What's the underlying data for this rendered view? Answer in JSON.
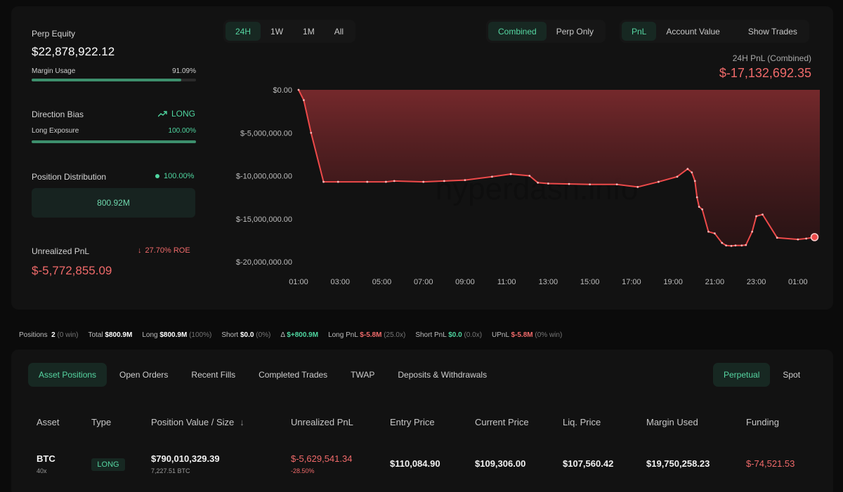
{
  "stats": {
    "perp_equity_label": "Perp Equity",
    "perp_equity_value": "$22,878,922.12",
    "margin_usage_label": "Margin Usage",
    "margin_usage_value": "91.09%",
    "margin_usage_fraction": 0.9109,
    "direction_bias_label": "Direction Bias",
    "direction_bias_value": "LONG",
    "long_exposure_label": "Long Exposure",
    "long_exposure_value": "100.00%",
    "long_exposure_fraction": 1.0,
    "position_distribution_label": "Position Distribution",
    "position_distribution_value": "100.00%",
    "position_distribution_amount": "800.92M",
    "unrealized_pnl_label": "Unrealized PnL",
    "roe_value": "27.70% ROE",
    "unrealized_pnl_value": "$-5,772,855.09"
  },
  "range_buttons": [
    "24H",
    "1W",
    "1M",
    "All"
  ],
  "range_active": 0,
  "mode_buttons": [
    "Combined",
    "Perp Only"
  ],
  "mode_active": 0,
  "metric_buttons": [
    "PnL",
    "Account Value"
  ],
  "metric_active": 0,
  "show_trades_label": "Show Trades",
  "chart_header": {
    "label": "24H PnL (Combined)",
    "value": "$-17,132,692.35"
  },
  "colors": {
    "accent_green": "#4fd6a0",
    "loss_red": "#f06a6a",
    "line_red": "#ee4a4a"
  },
  "chart_data": {
    "type": "area",
    "title": "",
    "xlabel": "",
    "ylabel": "",
    "x_ticks": [
      "01:00",
      "03:00",
      "05:00",
      "07:00",
      "09:00",
      "11:00",
      "13:00",
      "15:00",
      "17:00",
      "19:00",
      "21:00",
      "23:00",
      "01:00"
    ],
    "y_ticks": [
      "$0.00",
      "$-5,000,000.00",
      "$-10,000,000.00",
      "$-15,000,000.00",
      "$-20,000,000.00"
    ],
    "ylim": [
      -20000000,
      0
    ],
    "xlim_hours": [
      0,
      24.85
    ],
    "series": [
      {
        "x_hours": [
          0,
          0.25,
          0.6,
          1.2,
          1.9,
          3.3,
          4.2,
          4.6,
          6.0,
          7.0,
          8.0,
          9.3,
          10.2,
          11.1,
          11.5,
          12.0,
          13.0,
          14.0,
          15.3,
          16.3,
          17.3,
          18.2,
          18.7,
          18.9,
          19.05,
          19.15,
          19.25,
          19.4,
          19.7,
          20.0,
          20.35,
          20.55,
          20.8,
          21.0,
          21.3,
          21.5,
          21.8,
          22.0,
          22.3,
          23.0,
          24.0,
          24.4,
          24.8
        ],
        "values": [
          0,
          -1200000,
          -5000000,
          -10700000,
          -10700000,
          -10700000,
          -10700000,
          -10600000,
          -10700000,
          -10600000,
          -10500000,
          -10100000,
          -9800000,
          -10000000,
          -10800000,
          -10900000,
          -10950000,
          -11000000,
          -11000000,
          -11300000,
          -10700000,
          -10100000,
          -9200000,
          -9600000,
          -10600000,
          -12500000,
          -13600000,
          -13900000,
          -16500000,
          -16700000,
          -17800000,
          -18100000,
          -18150000,
          -18100000,
          -18100000,
          -18050000,
          -16500000,
          -14700000,
          -14500000,
          -17200000,
          -17400000,
          -17300000,
          -17132692
        ]
      }
    ],
    "watermark": "hyperdash.info",
    "grid": false
  },
  "summary": {
    "positions_label": "Positions",
    "positions_count": "2",
    "positions_win": "(0 win)",
    "total_label": "Total",
    "total_value": "$800.9M",
    "long_label": "Long",
    "long_value": "$800.9M",
    "long_pct": "(100%)",
    "short_label": "Short",
    "short_value": "$0.0",
    "short_pct": "(0%)",
    "delta_symbol": "Δ",
    "delta_value": "$+800.9M",
    "long_pnl_label": "Long PnL",
    "long_pnl_value": "$-5.8M",
    "long_pnl_x": "(25.0x)",
    "short_pnl_label": "Short PnL",
    "short_pnl_value": "$0.0",
    "short_pnl_x": "(0.0x)",
    "upnl_label": "UPnL",
    "upnl_value": "$-5.8M",
    "upnl_win": "(0% win)"
  },
  "tabs": [
    "Asset Positions",
    "Open Orders",
    "Recent Fills",
    "Completed Trades",
    "TWAP",
    "Deposits & Withdrawals"
  ],
  "tab_active": 0,
  "market_tabs": [
    "Perpetual",
    "Spot"
  ],
  "market_active": 0,
  "table": {
    "headers": [
      "Asset",
      "Type",
      "Position Value / Size",
      "Unrealized PnL",
      "Entry Price",
      "Current Price",
      "Liq. Price",
      "Margin Used",
      "Funding"
    ],
    "sort_icon": "↓",
    "row": {
      "asset": "BTC",
      "leverage": "40x",
      "type": "LONG",
      "position_value": "$790,010,329.39",
      "position_size": "7,227.51 BTC",
      "unrealized_pnl": "$-5,629,541.34",
      "unrealized_pct": "-28.50%",
      "entry_price": "$110,084.90",
      "current_price": "$109,306.00",
      "liq_price": "$107,560.42",
      "margin_used": "$19,750,258.23",
      "funding": "$-74,521.53"
    }
  }
}
